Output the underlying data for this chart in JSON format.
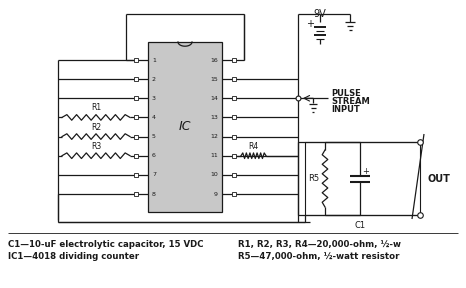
{
  "bg_color": "#ffffff",
  "line_color": "#1a1a1a",
  "ic_fill": "#c8c8c8",
  "caption_left_1": "C1—10-uF electrolytic capacitor, 15 VDC",
  "caption_left_2": "IC1—4018 dividing counter",
  "caption_right_1": "R1, R2, R3, R4—20,000-ohm, ½-w",
  "caption_right_2": "R5—47,000-ohm, ½-watt resistor",
  "figsize": [
    4.66,
    2.88
  ],
  "dpi": 100
}
